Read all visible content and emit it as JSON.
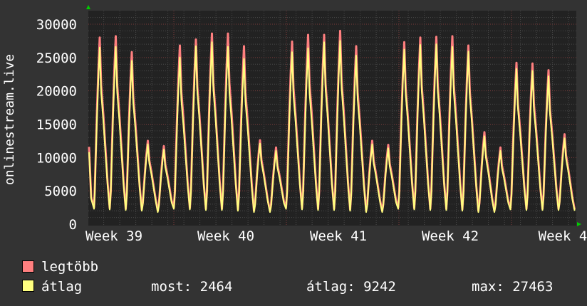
{
  "chart_data": {
    "type": "line",
    "title": "",
    "ylabel": "onlinestream.live",
    "xlabel": "",
    "ylim": [
      0,
      30000
    ],
    "yticks": [
      0,
      5000,
      10000,
      15000,
      20000,
      25000,
      30000
    ],
    "xtick_labels": [
      "Week 39",
      "Week 40",
      "Week 41",
      "Week 42",
      "Week 4"
    ],
    "grid": true,
    "x_unit": "day",
    "series": [
      {
        "name": "legtöbb",
        "color": "#FF7F7F",
        "daily_peaks": [
          28000,
          28200,
          25800,
          12500,
          11700,
          26800,
          27700,
          28600,
          28600,
          26700,
          12600,
          11500,
          27400,
          28400,
          28400,
          29000,
          26700,
          12500,
          11900,
          27300,
          28000,
          28100,
          28200,
          26800,
          13800,
          11500,
          24200,
          24100,
          23100,
          13500
        ],
        "daily_lows": [
          2500,
          2400,
          2300,
          2200,
          2000,
          2500,
          2400,
          2300,
          2300,
          2200,
          2000,
          2000,
          2500,
          2400,
          2300,
          2300,
          2200,
          2000,
          2000,
          2500,
          2400,
          2300,
          2300,
          2200,
          2000,
          2000,
          2400,
          2300,
          2300,
          2300
        ]
      },
      {
        "name": "átlag",
        "color": "#FFFF7F",
        "daily_peaks": [
          26500,
          26600,
          24500,
          12000,
          11200,
          25000,
          26700,
          27300,
          26600,
          24800,
          12100,
          11000,
          25800,
          26400,
          27300,
          27500,
          25300,
          12000,
          11400,
          26200,
          26900,
          27000,
          26600,
          25900,
          13200,
          11000,
          23300,
          23000,
          22200,
          12900
        ],
        "daily_lows": [
          2300,
          2200,
          2100,
          2000,
          1800,
          2300,
          2200,
          2100,
          2100,
          2000,
          1800,
          1800,
          2300,
          2200,
          2100,
          2100,
          2000,
          1800,
          1800,
          2300,
          2200,
          2100,
          2100,
          2000,
          1800,
          1800,
          2200,
          2100,
          2100,
          2100
        ]
      }
    ]
  },
  "legend": {
    "items": [
      {
        "label": "legtöbb",
        "color": "#FF7F7F"
      },
      {
        "label": "átlag",
        "color": "#FFFF7F"
      }
    ],
    "stats": {
      "now": "most: 2464",
      "avg": "átlag: 9242",
      "max": "max: 27463"
    }
  },
  "colors": {
    "background": "#333333",
    "plot": "#222222",
    "grid_minor": "#555555",
    "grid_major": "#7a3b3b",
    "arrow": "#00CC00"
  }
}
